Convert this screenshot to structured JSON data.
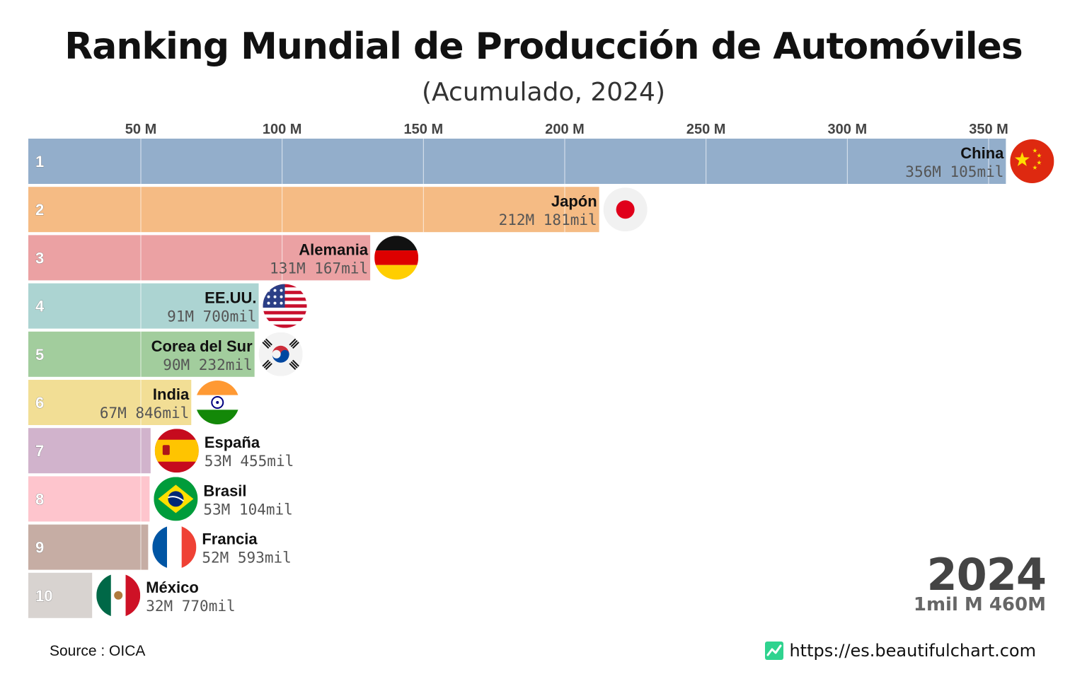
{
  "title": "Ranking Mundial de Producción de Automóviles",
  "subtitle": "(Acumulado, 2024)",
  "chart_data": {
    "type": "bar",
    "orientation": "horizontal",
    "title": "Ranking Mundial de Producción de Automóviles",
    "subtitle": "(Acumulado, 2024)",
    "xlabel": "",
    "ylabel": "",
    "xlim": [
      10000000,
      360000000
    ],
    "grid": true,
    "ticks": [
      {
        "value": 50000000,
        "label": "50 M"
      },
      {
        "value": 100000000,
        "label": "100 M"
      },
      {
        "value": 150000000,
        "label": "150 M"
      },
      {
        "value": 200000000,
        "label": "200 M"
      },
      {
        "value": 250000000,
        "label": "250 M"
      },
      {
        "value": 300000000,
        "label": "300 M"
      },
      {
        "value": 350000000,
        "label": "350 M"
      }
    ],
    "bars": [
      {
        "rank": "1",
        "country": "China",
        "value": 356105000,
        "value_label": "356M 105mil",
        "color": "#93aecb",
        "flag": "china-flag-icon"
      },
      {
        "rank": "2",
        "country": "Japón",
        "value": 212181000,
        "value_label": "212M 181mil",
        "color": "#f5bb84",
        "flag": "japan-flag-icon"
      },
      {
        "rank": "3",
        "country": "Alemania",
        "value": 131167000,
        "value_label": "131M 167mil",
        "color": "#eba1a3",
        "flag": "germany-flag-icon"
      },
      {
        "rank": "4",
        "country": "EE.UU.",
        "value": 91700000,
        "value_label": "91M 700mil",
        "color": "#acd4d2",
        "flag": "usa-flag-icon"
      },
      {
        "rank": "5",
        "country": "Corea del Sur",
        "value": 90232000,
        "value_label": "90M 232mil",
        "color": "#a2cd9d",
        "flag": "south-korea-flag-icon"
      },
      {
        "rank": "6",
        "country": "India",
        "value": 67846000,
        "value_label": "67M 846mil",
        "color": "#f2de95",
        "flag": "india-flag-icon"
      },
      {
        "rank": "7",
        "country": "España",
        "value": 53455000,
        "value_label": "53M 455mil",
        "color": "#d1b3cc",
        "flag": "spain-flag-icon"
      },
      {
        "rank": "8",
        "country": "Brasil",
        "value": 53104000,
        "value_label": "53M 104mil",
        "color": "#fec5cd",
        "flag": "brazil-flag-icon"
      },
      {
        "rank": "9",
        "country": "Francia",
        "value": 52593000,
        "value_label": "52M 593mil",
        "color": "#c6ada4",
        "flag": "france-flag-icon"
      },
      {
        "rank": "10",
        "country": "México",
        "value": 32770000,
        "value_label": "32M 770mil",
        "color": "#d8d3d0",
        "flag": "mexico-flag-icon"
      }
    ]
  },
  "year": "2024",
  "total": "1mil M 460M",
  "source": "Source : OICA",
  "url": "https://es.beautifulchart.com",
  "url_icon": "chart-line-icon"
}
